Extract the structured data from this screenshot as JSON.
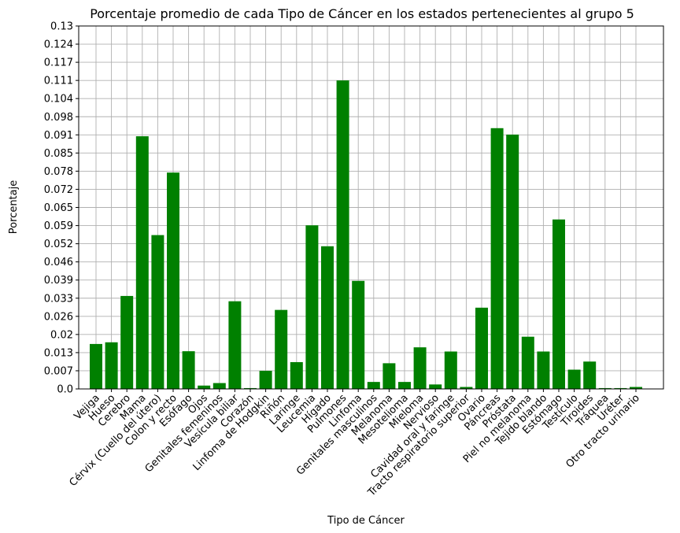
{
  "chart_data": {
    "type": "bar",
    "title": "Porcentaje promedio de cada Tipo de Cáncer en los estados pertenecientes al grupo 5",
    "xlabel": "Tipo de Cáncer",
    "ylabel": "Porcentaje",
    "ylim": [
      0,
      0.13
    ],
    "yticks": [
      "0.0",
      "0.007",
      "0.013",
      "0.02",
      "0.026",
      "0.033",
      "0.039",
      "0.046",
      "0.052",
      "0.059",
      "0.065",
      "0.072",
      "0.078",
      "0.085",
      "0.091",
      "0.098",
      "0.104",
      "0.111",
      "0.117",
      "0.124",
      "0.13"
    ],
    "grid": true,
    "bar_color": "#008000",
    "categories": [
      "Vejiga",
      "Hueso",
      "Cerebro",
      "Mama",
      "Cérvix (Cuello del útero)",
      "Colon y recto",
      "Esófago",
      "Ojos",
      "Genitales femeninos",
      "Vesícula biliar",
      "Corazón",
      "Linfoma de Hodgkin",
      "Riñón",
      "Laringe",
      "Leucemia",
      "Hígado",
      "Pulmones",
      "Linfoma",
      "Genitales masculinos",
      "Melanoma",
      "Mesotelioma",
      "Mieloma",
      "Nervioso",
      "Cavidad oral y faringe",
      "Tracto respiratorio superior",
      "Ovario",
      "Páncreas",
      "Próstata",
      "Piel no melanoma",
      "Tejido blando",
      "Estómago",
      "Testículo",
      "Tiroides",
      "Tráquea",
      "Uréter",
      "Otro tracto urinario"
    ],
    "values": [
      0.0161,
      0.0167,
      0.0333,
      0.0905,
      0.0551,
      0.0775,
      0.0135,
      0.0012,
      0.0021,
      0.0314,
      0.0003,
      0.0065,
      0.0283,
      0.0096,
      0.0586,
      0.0511,
      0.1105,
      0.0387,
      0.0025,
      0.0092,
      0.0025,
      0.0149,
      0.0016,
      0.0134,
      0.0007,
      0.0291,
      0.0934,
      0.0911,
      0.0187,
      0.0134,
      0.0607,
      0.0069,
      0.0098,
      0.0003,
      0.0003,
      0.0007
    ]
  }
}
